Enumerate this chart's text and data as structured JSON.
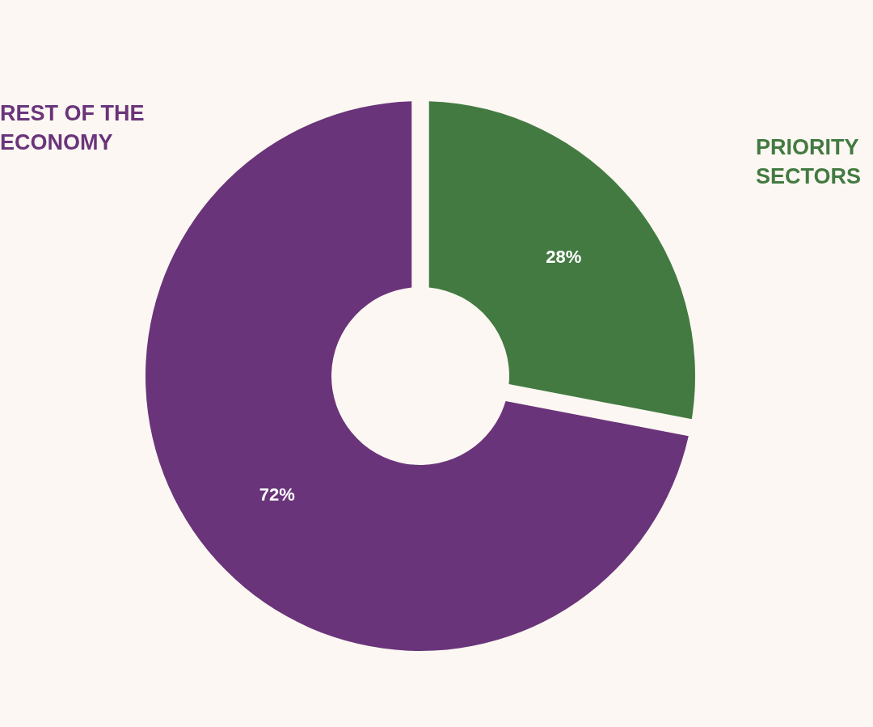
{
  "chart_data": {
    "type": "donut",
    "categories": [
      "PRIORITY\nSECTORS",
      "REST OF THE\nECONOMY"
    ],
    "values": [
      28,
      72
    ],
    "colors": [
      "#437a41",
      "#6a347a"
    ],
    "value_labels": [
      "28%",
      "72%"
    ]
  }
}
